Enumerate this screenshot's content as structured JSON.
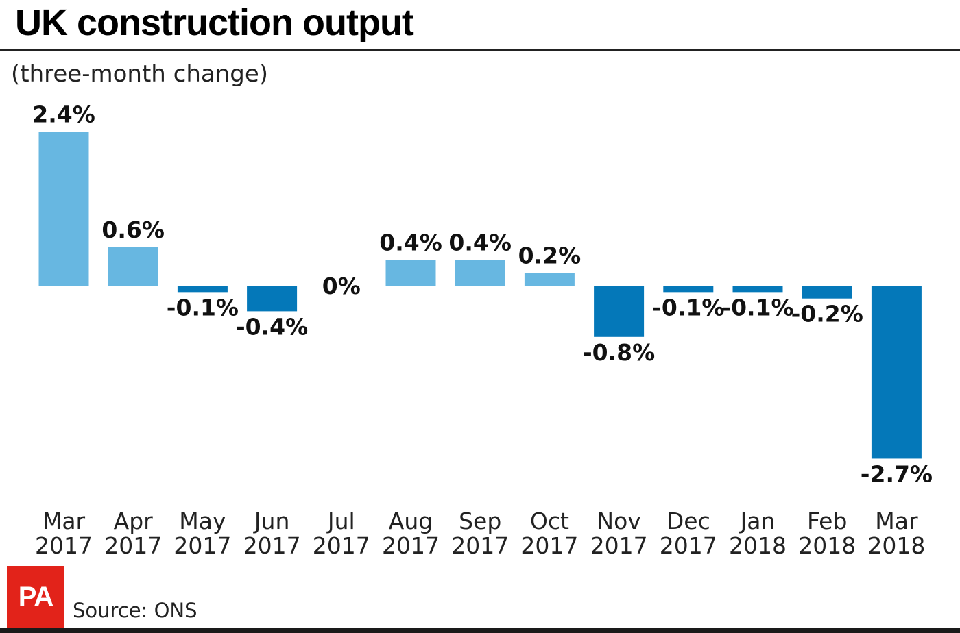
{
  "title": "UK construction output",
  "subtitle": "(three-month change)",
  "source": "Source: ONS",
  "logo_text": "PA",
  "colors": {
    "positive": "#67b7e1",
    "negative": "#0478b9",
    "logo": "#e2231a"
  },
  "chart_data": {
    "type": "bar",
    "title": "UK construction output",
    "subtitle": "(three-month change)",
    "categories": [
      [
        "Mar",
        "2017"
      ],
      [
        "Apr",
        "2017"
      ],
      [
        "May",
        "2017"
      ],
      [
        "Jun",
        "2017"
      ],
      [
        "Jul",
        "2017"
      ],
      [
        "Aug",
        "2017"
      ],
      [
        "Sep",
        "2017"
      ],
      [
        "Oct",
        "2017"
      ],
      [
        "Nov",
        "2017"
      ],
      [
        "Dec",
        "2017"
      ],
      [
        "Jan",
        "2018"
      ],
      [
        "Feb",
        "2018"
      ],
      [
        "Mar",
        "2018"
      ]
    ],
    "values": [
      2.4,
      0.6,
      -0.1,
      -0.4,
      0,
      0.4,
      0.4,
      0.2,
      -0.8,
      -0.1,
      -0.1,
      -0.2,
      -2.7
    ],
    "value_labels": [
      "2.4%",
      "0.6%",
      "-0.1%",
      "-0.4%",
      "0%",
      "0.4%",
      "0.4%",
      "0.2%",
      "-0.8%",
      "-0.1%",
      "-0.1%",
      "-0.2%",
      "-2.7%"
    ],
    "unit": "%",
    "xlabel": "",
    "ylabel": "",
    "grid": false,
    "legend": "none"
  }
}
